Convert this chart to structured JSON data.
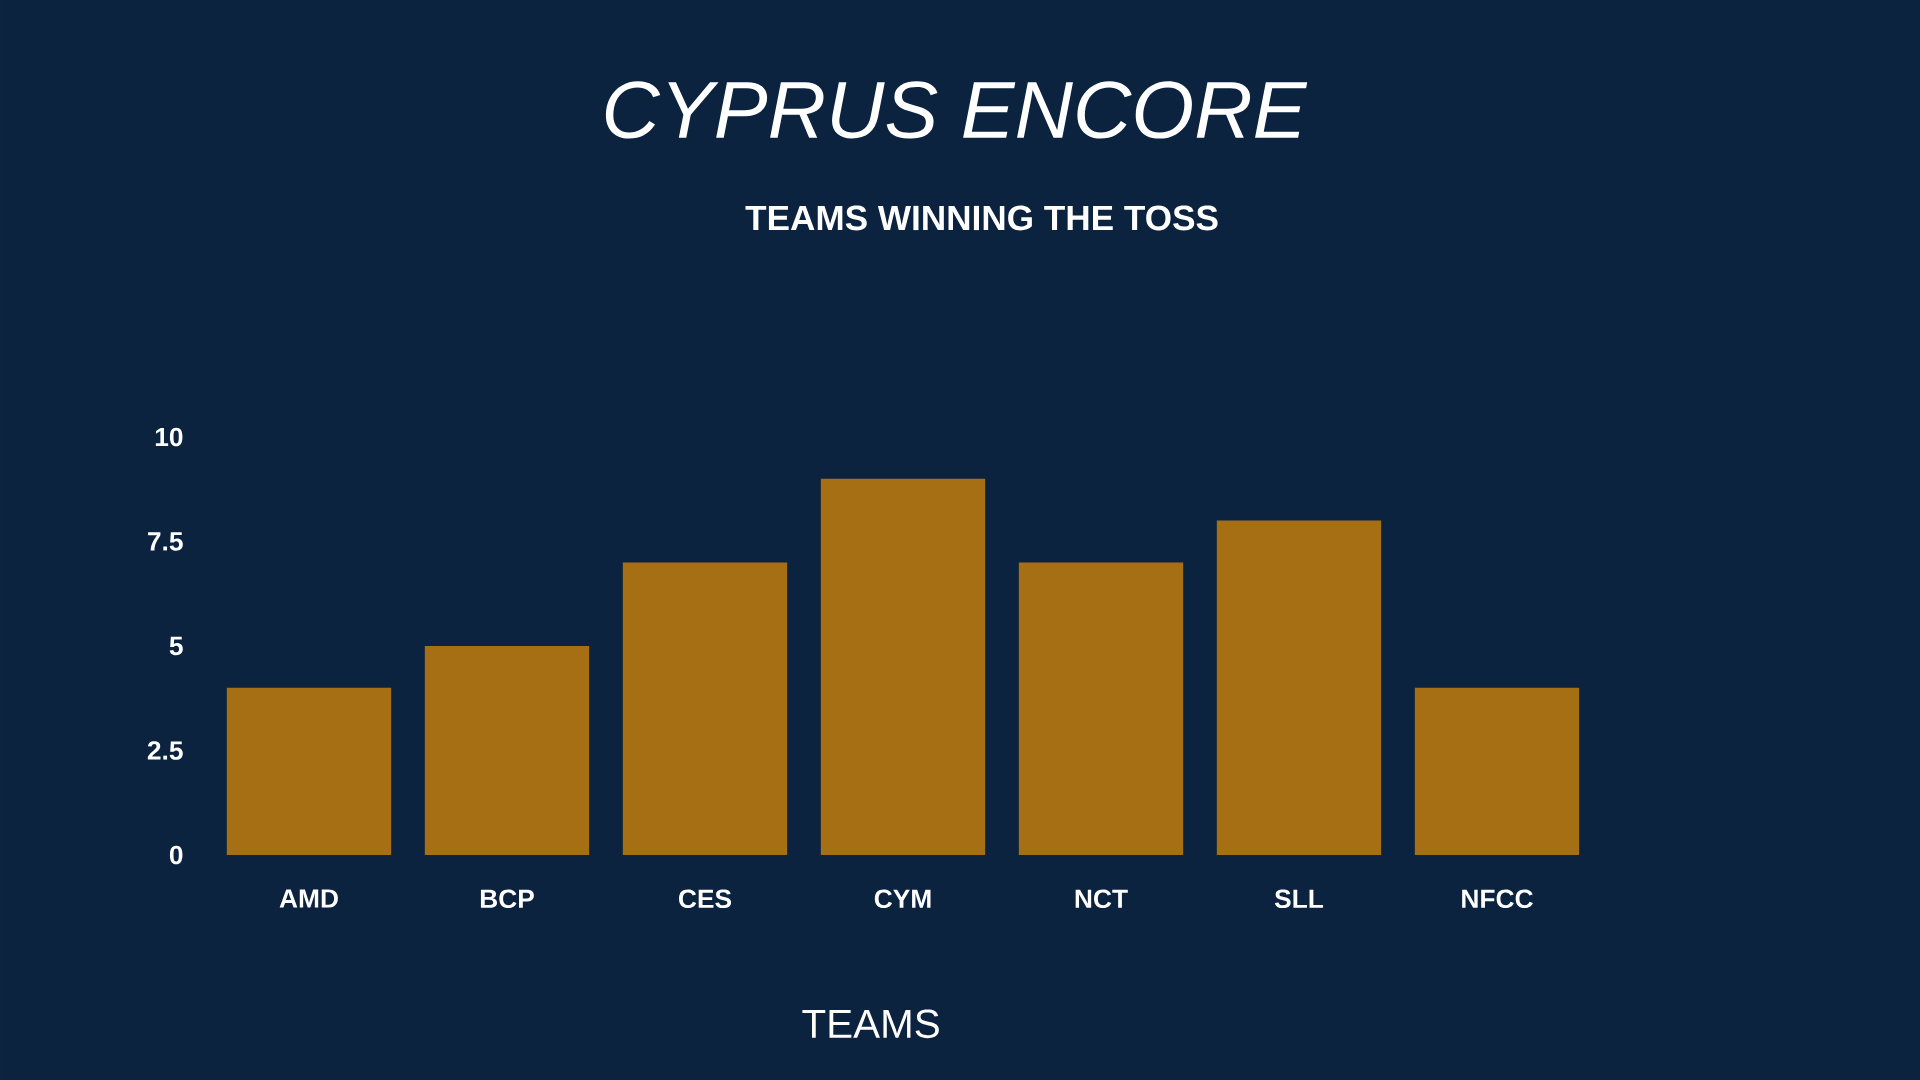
{
  "chart_data": {
    "type": "bar",
    "title": "CYPRUS ENCORE",
    "subtitle": "TEAMS WINNING THE TOSS",
    "xlabel": "TEAMS",
    "categories": [
      "AMD",
      "BCP",
      "CES",
      "CYM",
      "NCT",
      "SLL",
      "NFCC"
    ],
    "values": [
      4,
      5,
      7,
      9,
      7,
      8,
      4
    ],
    "color": "#a66f13",
    "ylim": [
      0,
      10
    ],
    "yticks": [
      0,
      2.5,
      5,
      7.5,
      10
    ]
  }
}
